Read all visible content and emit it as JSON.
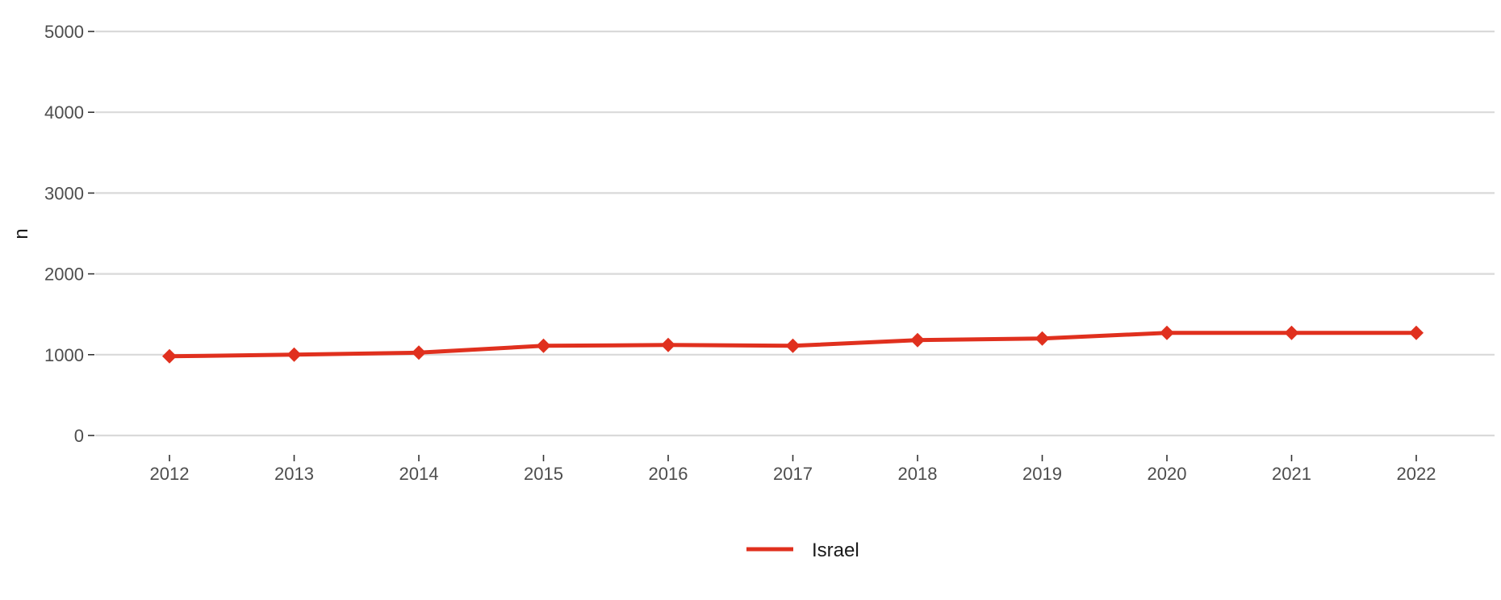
{
  "chart_data": {
    "type": "line",
    "title": "",
    "xlabel": "",
    "ylabel": "n",
    "categories": [
      "2012",
      "2013",
      "2014",
      "2015",
      "2016",
      "2017",
      "2018",
      "2019",
      "2020",
      "2021",
      "2022"
    ],
    "series": [
      {
        "name": "Israel",
        "color": "#e0301e",
        "marker": "diamond",
        "values": [
          980,
          1000,
          1025,
          1110,
          1120,
          1110,
          1180,
          1200,
          1270,
          1270,
          1270
        ]
      }
    ],
    "ylim": [
      0,
      5000
    ],
    "yticks": [
      "0",
      "1000",
      "2000",
      "3000",
      "4000",
      "5000"
    ],
    "grid": true,
    "legend_position": "bottom"
  }
}
